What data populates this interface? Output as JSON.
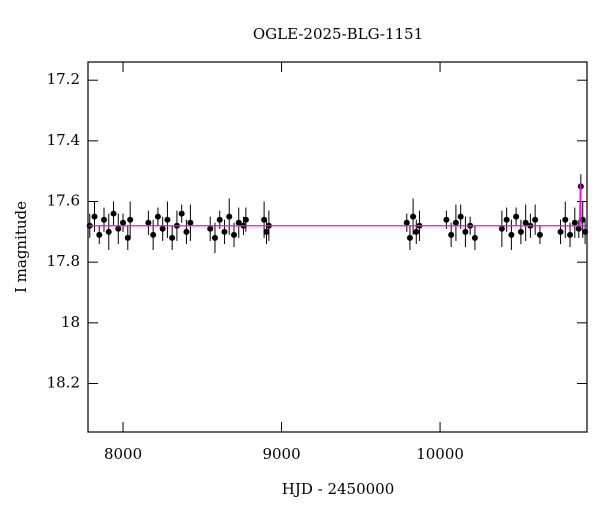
{
  "chart_data": {
    "type": "scatter",
    "title": "OGLE-2025-BLG-1151",
    "xlabel": "HJD - 2450000",
    "ylabel": "I magnitude",
    "xlim": [
      7779,
      10927
    ],
    "ylim": [
      18.36,
      17.14
    ],
    "xticks": [
      8000,
      9000,
      10000
    ],
    "yticks": [
      17.2,
      17.4,
      17.6,
      17.8,
      18,
      18.2
    ],
    "series": [
      {
        "color": "#000000",
        "x": [
          7790,
          7820,
          7850,
          7880,
          7910,
          7940,
          7970,
          8000,
          8030,
          8045,
          8160,
          8190,
          8220,
          8250,
          8280,
          8310,
          8340,
          8370,
          8400,
          8425,
          8550,
          8580,
          8610,
          8640,
          8670,
          8700,
          8730,
          8760,
          8775,
          8890,
          8905,
          8920,
          9790,
          9810,
          9830,
          9850,
          9870,
          10040,
          10070,
          10100,
          10130,
          10160,
          10190,
          10220,
          10390,
          10420,
          10450,
          10480,
          10510,
          10540,
          10570,
          10600,
          10630,
          10760,
          10790,
          10820,
          10850,
          10875,
          10888,
          10900,
          10915
        ],
        "values": [
          17.68,
          17.65,
          17.71,
          17.66,
          17.7,
          17.64,
          17.69,
          17.67,
          17.72,
          17.66,
          17.67,
          17.71,
          17.65,
          17.69,
          17.66,
          17.72,
          17.68,
          17.64,
          17.7,
          17.67,
          17.69,
          17.72,
          17.66,
          17.7,
          17.65,
          17.71,
          17.67,
          17.68,
          17.66,
          17.66,
          17.7,
          17.68,
          17.67,
          17.72,
          17.65,
          17.7,
          17.68,
          17.66,
          17.71,
          17.67,
          17.65,
          17.7,
          17.68,
          17.72,
          17.69,
          17.66,
          17.71,
          17.65,
          17.7,
          17.67,
          17.68,
          17.66,
          17.71,
          17.7,
          17.66,
          17.71,
          17.67,
          17.69,
          17.55,
          17.66,
          17.7
        ],
        "errors": [
          0.04,
          0.05,
          0.03,
          0.04,
          0.06,
          0.04,
          0.05,
          0.03,
          0.04,
          0.06,
          0.04,
          0.05,
          0.03,
          0.04,
          0.06,
          0.04,
          0.05,
          0.03,
          0.04,
          0.06,
          0.04,
          0.05,
          0.03,
          0.04,
          0.06,
          0.04,
          0.05,
          0.03,
          0.04,
          0.06,
          0.04,
          0.05,
          0.03,
          0.04,
          0.06,
          0.04,
          0.05,
          0.03,
          0.04,
          0.06,
          0.04,
          0.05,
          0.03,
          0.04,
          0.06,
          0.04,
          0.05,
          0.03,
          0.04,
          0.06,
          0.04,
          0.05,
          0.03,
          0.04,
          0.06,
          0.04,
          0.05,
          0.03,
          0.04,
          0.06,
          0.04
        ]
      }
    ],
    "model": {
      "color": "#ff00ff",
      "x": [
        7779,
        10880,
        10885,
        10890,
        10927
      ],
      "values": [
        17.68,
        17.68,
        17.54,
        17.68,
        17.68
      ]
    }
  }
}
